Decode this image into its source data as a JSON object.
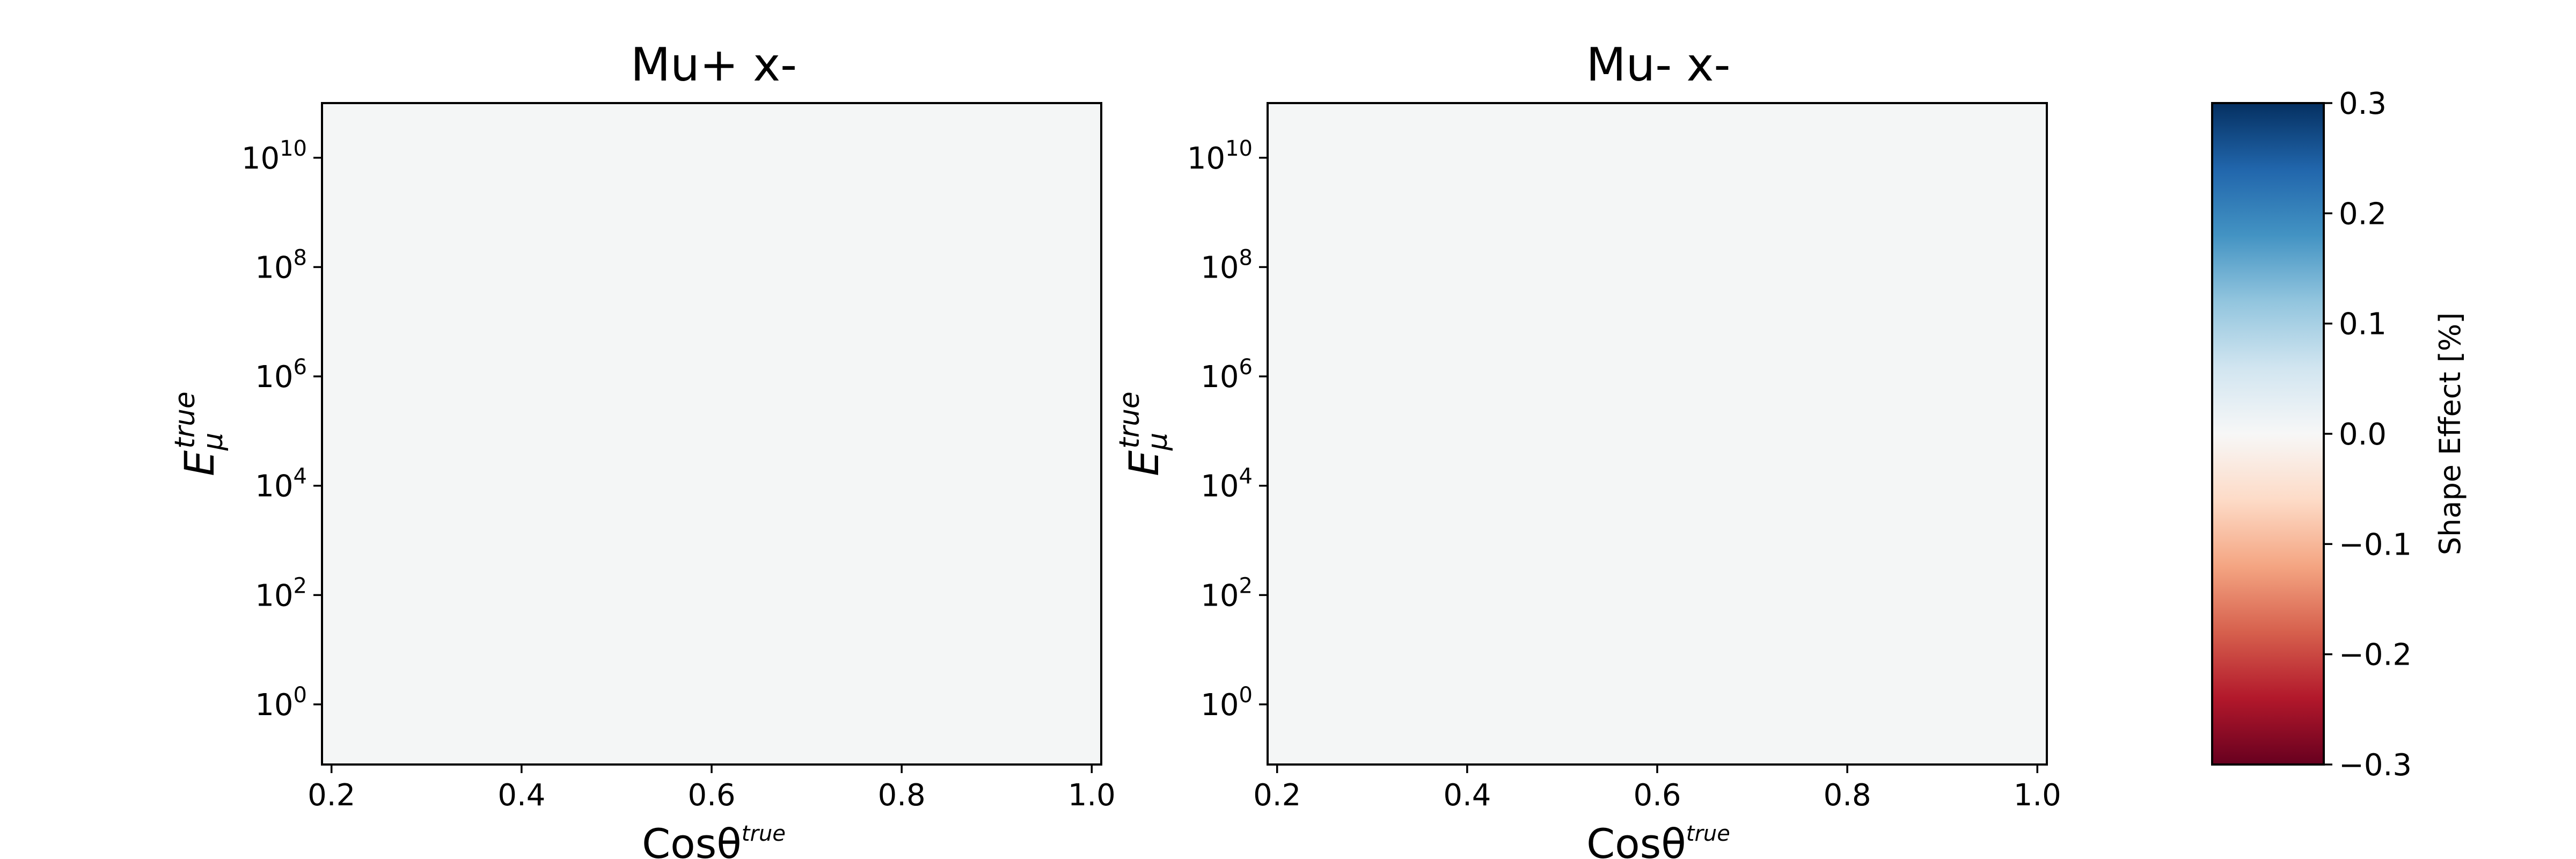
{
  "chart_data": [
    {
      "type": "heatmap",
      "title": "Mu+ x-",
      "xlabel": "Cosθ",
      "xlabel_sup": "true",
      "ylabel": "E",
      "ylabel_sub": "μ",
      "ylabel_sup": "true",
      "xlim": [
        0.19,
        1.01
      ],
      "x_ticks": [
        "0.2",
        "0.4",
        "0.6",
        "0.8",
        "1.0"
      ],
      "y_scale": "log",
      "ylim_log10": [
        -1.1,
        11.0
      ],
      "y_ticks": [
        {
          "base": "10",
          "exp": "10",
          "log10": 10
        },
        {
          "base": "10",
          "exp": "8",
          "log10": 8
        },
        {
          "base": "10",
          "exp": "6",
          "log10": 6
        },
        {
          "base": "10",
          "exp": "4",
          "log10": 4
        },
        {
          "base": "10",
          "exp": "2",
          "log10": 2
        },
        {
          "base": "10",
          "exp": "0",
          "log10": 0
        }
      ],
      "values_pct": 0.0,
      "fill_color": "#f4f6f6"
    },
    {
      "type": "heatmap",
      "title": "Mu- x-",
      "xlabel": "Cosθ",
      "xlabel_sup": "true",
      "ylabel": "E",
      "ylabel_sub": "μ",
      "ylabel_sup": "true",
      "xlim": [
        0.19,
        1.01
      ],
      "x_ticks": [
        "0.2",
        "0.4",
        "0.6",
        "0.8",
        "1.0"
      ],
      "y_scale": "log",
      "ylim_log10": [
        -1.1,
        11.0
      ],
      "y_ticks": [
        {
          "base": "10",
          "exp": "10",
          "log10": 10
        },
        {
          "base": "10",
          "exp": "8",
          "log10": 8
        },
        {
          "base": "10",
          "exp": "6",
          "log10": 6
        },
        {
          "base": "10",
          "exp": "4",
          "log10": 4
        },
        {
          "base": "10",
          "exp": "2",
          "log10": 2
        },
        {
          "base": "10",
          "exp": "0",
          "log10": 0
        }
      ],
      "values_pct": 0.0,
      "fill_color": "#f4f6f6"
    }
  ],
  "colorbar": {
    "label": "Shape Effect [%]",
    "range": [
      -0.3,
      0.3
    ],
    "ticks": [
      {
        "value": 0.3,
        "label": "0.3"
      },
      {
        "value": 0.2,
        "label": "0.2"
      },
      {
        "value": 0.1,
        "label": "0.1"
      },
      {
        "value": 0.0,
        "label": "0.0"
      },
      {
        "value": -0.1,
        "label": "−0.1"
      },
      {
        "value": -0.2,
        "label": "−0.2"
      },
      {
        "value": -0.3,
        "label": "−0.3"
      }
    ],
    "colormap": "RdBu",
    "colors": [
      "#67001f",
      "#b2182b",
      "#d6604d",
      "#f4a582",
      "#fddbc7",
      "#f7f7f7",
      "#d1e5f0",
      "#92c5de",
      "#4393c3",
      "#2166ac",
      "#053061"
    ]
  }
}
